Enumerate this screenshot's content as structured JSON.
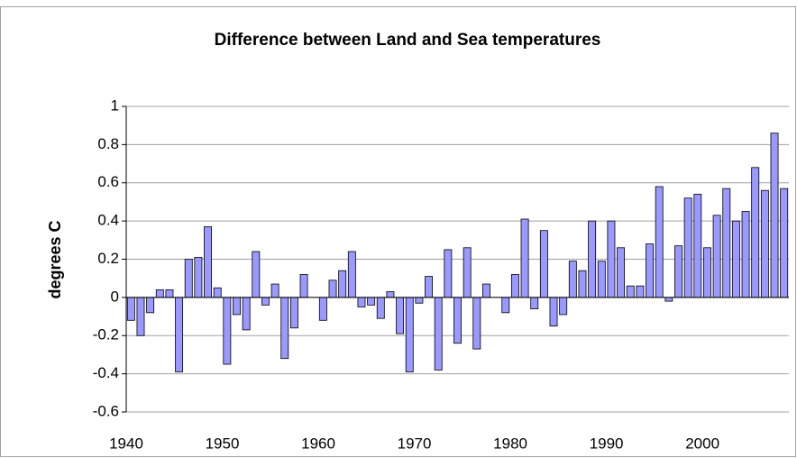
{
  "chart_data": {
    "type": "bar",
    "title": "Difference between Land and Sea temperatures",
    "y_label": "degrees C",
    "categories": [
      "1940",
      null,
      null,
      null,
      null,
      null,
      null,
      null,
      null,
      null,
      "1950",
      null,
      null,
      null,
      null,
      null,
      null,
      null,
      null,
      null,
      "1960",
      null,
      null,
      null,
      null,
      null,
      null,
      null,
      null,
      null,
      "1970",
      null,
      null,
      null,
      null,
      null,
      null,
      null,
      null,
      null,
      "1980",
      null,
      null,
      null,
      null,
      null,
      null,
      null,
      null,
      null,
      "1990",
      null,
      null,
      null,
      null,
      null,
      null,
      null,
      null,
      null,
      "2000",
      null,
      null,
      null,
      null,
      null,
      null,
      null,
      null
    ],
    "values": [
      -0.12,
      -0.2,
      -0.08,
      0.04,
      0.04,
      -0.39,
      0.2,
      0.21,
      0.37,
      0.05,
      -0.35,
      -0.09,
      -0.17,
      0.24,
      -0.04,
      0.07,
      -0.32,
      -0.16,
      0.12,
      0,
      -0.12,
      0.09,
      0.14,
      0.24,
      -0.05,
      -0.04,
      -0.11,
      0.03,
      -0.19,
      -0.39,
      -0.03,
      0.11,
      -0.38,
      0.25,
      -0.24,
      0.26,
      -0.27,
      0.07,
      0,
      -0.08,
      0.12,
      0.41,
      -0.06,
      0.35,
      -0.15,
      -0.09,
      0.19,
      0.14,
      0.4,
      0.19,
      0.4,
      0.26,
      0.06,
      0.06,
      0.28,
      0.58,
      -0.02,
      0.27,
      0.52,
      0.54,
      0.26,
      0.43,
      0.57,
      0.4,
      0.45,
      0.68,
      0.56,
      0.86,
      0.57
    ],
    "color": "#9999ff",
    "ylim": [
      -0.6,
      1
    ],
    "yticks": [
      -0.6,
      -0.4,
      -0.2,
      0,
      0.2,
      0.4,
      0.6,
      0.8,
      1
    ],
    "grid": true
  }
}
